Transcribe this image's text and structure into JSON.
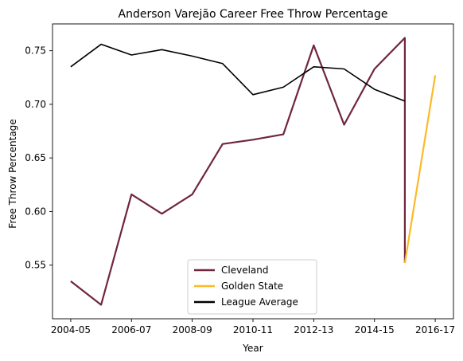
{
  "chart_data": {
    "type": "line",
    "title": "Anderson Varejão Career Free Throw Percentage",
    "xlabel": "Year",
    "ylabel": "Free Throw Percentage",
    "x_tick_labels": [
      "2004-05",
      "2006-07",
      "2008-09",
      "2010-11",
      "2012-13",
      "2014-15",
      "2016-17"
    ],
    "y_tick_labels": [
      "0.55",
      "0.60",
      "0.65",
      "0.70",
      "0.75"
    ],
    "xlim": [
      "2004-05",
      "2016-17"
    ],
    "ylim": [
      0.5,
      0.775
    ],
    "grid": false,
    "legend_position": "bottom-center",
    "series": [
      {
        "name": "Cleveland",
        "color": "#6f263d",
        "points": [
          [
            "2004-05",
            0.535
          ],
          [
            "2005-06",
            0.513
          ],
          [
            "2006-07",
            0.616
          ],
          [
            "2007-08",
            0.598
          ],
          [
            "2008-09",
            0.616
          ],
          [
            "2009-10",
            0.663
          ],
          [
            "2010-11",
            0.667
          ],
          [
            "2011-12",
            0.672
          ],
          [
            "2012-13",
            0.755
          ],
          [
            "2013-14",
            0.681
          ],
          [
            "2014-15",
            0.733
          ],
          [
            "2015-16",
            0.762
          ],
          [
            "2015-16",
            0.552
          ]
        ]
      },
      {
        "name": "Golden State",
        "color": "#fdb927",
        "points": [
          [
            "2015-16",
            0.552
          ],
          [
            "2016-17",
            0.727
          ]
        ]
      },
      {
        "name": "League Average",
        "color": "#000000",
        "points": [
          [
            "2004-05",
            0.735
          ],
          [
            "2005-06",
            0.756
          ],
          [
            "2006-07",
            0.746
          ],
          [
            "2007-08",
            0.751
          ],
          [
            "2008-09",
            0.745
          ],
          [
            "2009-10",
            0.738
          ],
          [
            "2010-11",
            0.709
          ],
          [
            "2011-12",
            0.716
          ],
          [
            "2012-13",
            0.735
          ],
          [
            "2013-14",
            0.733
          ],
          [
            "2014-15",
            0.714
          ],
          [
            "2015-16",
            0.703
          ]
        ]
      }
    ]
  }
}
